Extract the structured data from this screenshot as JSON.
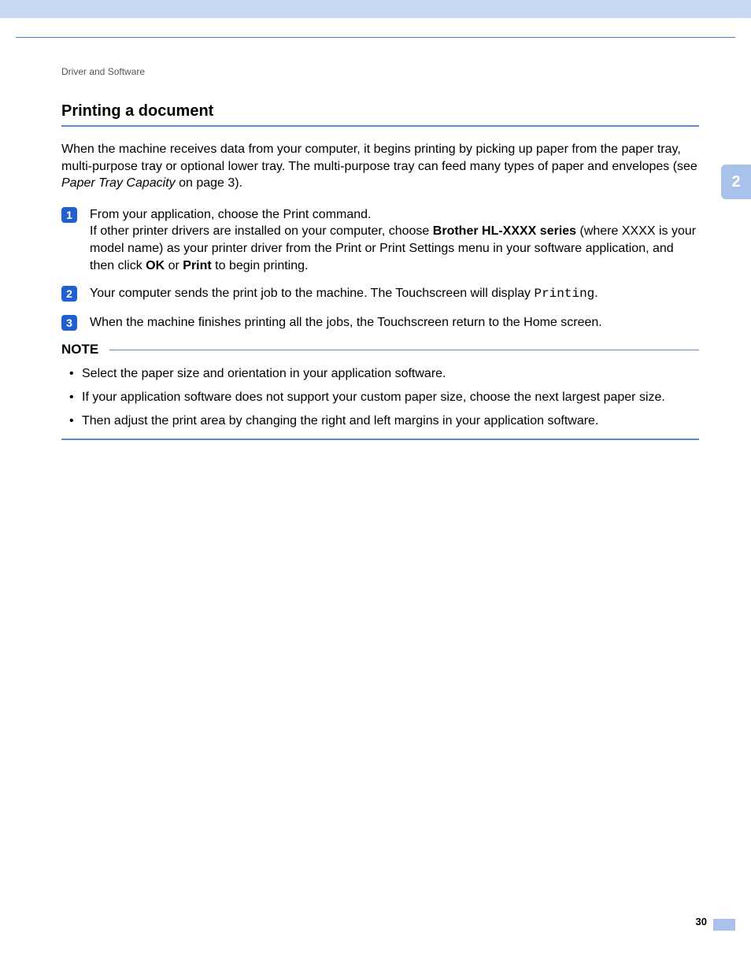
{
  "header": {
    "breadcrumb": "Driver and Software"
  },
  "sidebar": {
    "chapter": "2"
  },
  "section": {
    "title": "Printing a document",
    "intro_part1": "When the machine receives data from your computer, it begins printing by picking up paper from the paper tray, multi-purpose tray or optional lower tray. The multi-purpose tray can feed many types of paper and envelopes (see ",
    "intro_italic": "Paper Tray Capacity",
    "intro_part2": " on page 3)."
  },
  "steps": [
    {
      "num": "1",
      "line1": "From your application, choose the Print command.",
      "line2a": "If other printer drivers are installed on your computer, choose ",
      "line2bold": "Brother HL-XXXX series",
      "line2b": " (where XXXX is your model name) as your printer driver from the Print or Print Settings menu in your software application, and then click ",
      "line2bold2": "OK",
      "line2c": " or ",
      "line2bold3": "Print",
      "line2d": " to begin printing."
    },
    {
      "num": "2",
      "textA": "Your computer sends the print job to the machine. The Touchscreen will display ",
      "mono": "Printing",
      "textB": "."
    },
    {
      "num": "3",
      "text": "When the machine finishes printing all the jobs, the Touchscreen return to the Home screen."
    }
  ],
  "note": {
    "title": "NOTE",
    "items": [
      "Select the paper size and orientation in your application software.",
      "If your application software does not support your custom paper size, choose the next largest paper size.",
      "Then adjust the print area by changing the right and left margins in your application software."
    ]
  },
  "footer": {
    "page": "30"
  },
  "colors": {
    "accent_light": "#a8c2ec",
    "accent_bar": "#c8d9f2",
    "rule_blue": "#5a8ad0",
    "step_badge": "#2060d0"
  }
}
